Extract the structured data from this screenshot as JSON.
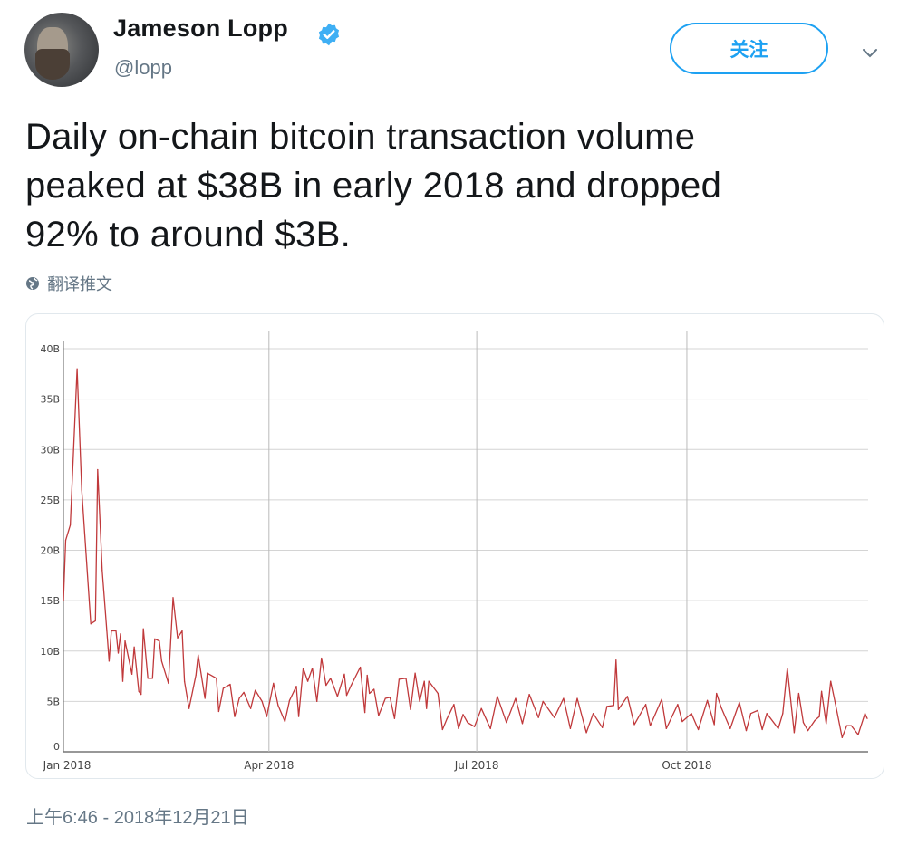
{
  "user": {
    "name": "Jameson Lopp",
    "handle": "@lopp",
    "verified": true,
    "avatar_icon": "avatar-photo"
  },
  "actions": {
    "follow_label": "关注",
    "menu_icon": "chevron-down-icon"
  },
  "tweet": {
    "lines": [
      "Daily on-chain bitcoin transaction volume",
      "peaked at $38B in early 2018 and dropped",
      "92% to around $3B."
    ],
    "translate_label": "翻译推文",
    "timestamp": "上午6:46 - 2018年12月21日"
  },
  "colors": {
    "accent": "#1da1f2",
    "line": "#c0393b",
    "muted": "#657786"
  },
  "chart_data": {
    "type": "line",
    "title": "",
    "xlabel": "",
    "ylabel": "",
    "ylim": [
      0,
      40
    ],
    "yticks": [
      "0",
      "5B",
      "10B",
      "15B",
      "20B",
      "25B",
      "30B",
      "35B",
      "40B"
    ],
    "ytick_values": [
      0,
      5,
      10,
      15,
      20,
      25,
      30,
      35,
      40
    ],
    "xticks": [
      "Jan 2018",
      "Apr 2018",
      "Jul 2018",
      "Oct 2018"
    ],
    "xtick_dates": [
      "2018-01-01",
      "2018-04-01",
      "2018-07-01",
      "2018-10-01"
    ],
    "grid": true,
    "unit": "billion USD",
    "series": [
      {
        "points": [
          [
            "2018-01-01",
            15
          ],
          [
            "2018-01-02",
            21
          ],
          [
            "2018-01-04",
            22.5
          ],
          [
            "2018-01-07",
            38
          ],
          [
            "2018-01-09",
            26
          ],
          [
            "2018-01-13",
            12.7
          ],
          [
            "2018-01-15",
            13
          ],
          [
            "2018-01-16",
            28
          ],
          [
            "2018-01-18",
            18
          ],
          [
            "2018-01-20",
            12
          ],
          [
            "2018-01-21",
            9
          ],
          [
            "2018-01-22",
            12
          ],
          [
            "2018-01-24",
            12
          ],
          [
            "2018-01-25",
            9.8
          ],
          [
            "2018-01-26",
            11.7
          ],
          [
            "2018-01-27",
            7
          ],
          [
            "2018-01-28",
            11
          ],
          [
            "2018-01-31",
            7.7
          ],
          [
            "2018-02-01",
            10.4
          ],
          [
            "2018-02-03",
            6
          ],
          [
            "2018-02-04",
            5.7
          ],
          [
            "2018-02-05",
            12.2
          ],
          [
            "2018-02-07",
            7.3
          ],
          [
            "2018-02-09",
            7.3
          ],
          [
            "2018-02-10",
            11.2
          ],
          [
            "2018-02-12",
            11
          ],
          [
            "2018-02-13",
            9
          ],
          [
            "2018-02-16",
            6.8
          ],
          [
            "2018-02-18",
            15.3
          ],
          [
            "2018-02-20",
            11.3
          ],
          [
            "2018-02-22",
            12
          ],
          [
            "2018-02-23",
            7
          ],
          [
            "2018-02-25",
            4.3
          ],
          [
            "2018-02-28",
            7.6
          ],
          [
            "2018-03-01",
            9.6
          ],
          [
            "2018-03-04",
            5.3
          ],
          [
            "2018-03-05",
            7.8
          ],
          [
            "2018-03-09",
            7.3
          ],
          [
            "2018-03-10",
            4
          ],
          [
            "2018-03-12",
            6.3
          ],
          [
            "2018-03-15",
            6.7
          ],
          [
            "2018-03-17",
            3.5
          ],
          [
            "2018-03-19",
            5.3
          ],
          [
            "2018-03-21",
            5.9
          ],
          [
            "2018-03-24",
            4.3
          ],
          [
            "2018-03-26",
            6.1
          ],
          [
            "2018-03-29",
            5
          ],
          [
            "2018-03-31",
            3.5
          ],
          [
            "2018-04-03",
            6.8
          ],
          [
            "2018-04-05",
            4.6
          ],
          [
            "2018-04-08",
            3
          ],
          [
            "2018-04-10",
            5.1
          ],
          [
            "2018-04-13",
            6.5
          ],
          [
            "2018-04-14",
            3.5
          ],
          [
            "2018-04-16",
            8.3
          ],
          [
            "2018-04-18",
            7
          ],
          [
            "2018-04-20",
            8.3
          ],
          [
            "2018-04-22",
            5
          ],
          [
            "2018-04-24",
            9.3
          ],
          [
            "2018-04-26",
            6.6
          ],
          [
            "2018-04-28",
            7.3
          ],
          [
            "2018-05-01",
            5.5
          ],
          [
            "2018-05-04",
            7.7
          ],
          [
            "2018-05-05",
            5.6
          ],
          [
            "2018-05-07",
            6.6
          ],
          [
            "2018-05-11",
            8.4
          ],
          [
            "2018-05-13",
            3.9
          ],
          [
            "2018-05-14",
            7.6
          ],
          [
            "2018-05-15",
            5.8
          ],
          [
            "2018-05-17",
            6.2
          ],
          [
            "2018-05-19",
            3.6
          ],
          [
            "2018-05-22",
            5.3
          ],
          [
            "2018-05-24",
            5.4
          ],
          [
            "2018-05-26",
            3.3
          ],
          [
            "2018-05-28",
            7.2
          ],
          [
            "2018-05-31",
            7.3
          ],
          [
            "2018-06-02",
            4.2
          ],
          [
            "2018-06-04",
            7.8
          ],
          [
            "2018-06-06",
            5
          ],
          [
            "2018-06-08",
            7
          ],
          [
            "2018-06-09",
            4.3
          ],
          [
            "2018-06-10",
            7
          ],
          [
            "2018-06-14",
            5.8
          ],
          [
            "2018-06-16",
            2.2
          ],
          [
            "2018-06-18",
            3.3
          ],
          [
            "2018-06-21",
            4.7
          ],
          [
            "2018-06-23",
            2.3
          ],
          [
            "2018-06-25",
            3.7
          ],
          [
            "2018-06-27",
            2.9
          ],
          [
            "2018-06-30",
            2.5
          ],
          [
            "2018-07-03",
            4.3
          ],
          [
            "2018-07-07",
            2.3
          ],
          [
            "2018-07-10",
            5.5
          ],
          [
            "2018-07-14",
            2.9
          ],
          [
            "2018-07-18",
            5.3
          ],
          [
            "2018-07-21",
            2.8
          ],
          [
            "2018-07-24",
            5.7
          ],
          [
            "2018-07-28",
            3.4
          ],
          [
            "2018-07-30",
            5
          ],
          [
            "2018-08-04",
            3.4
          ],
          [
            "2018-08-08",
            5.3
          ],
          [
            "2018-08-11",
            2.3
          ],
          [
            "2018-08-14",
            5.3
          ],
          [
            "2018-08-18",
            1.9
          ],
          [
            "2018-08-21",
            3.8
          ],
          [
            "2018-08-25",
            2.4
          ],
          [
            "2018-08-27",
            4.5
          ],
          [
            "2018-08-30",
            4.6
          ],
          [
            "2018-08-31",
            9.1
          ],
          [
            "2018-09-01",
            4.2
          ],
          [
            "2018-09-05",
            5.5
          ],
          [
            "2018-09-08",
            2.7
          ],
          [
            "2018-09-13",
            4.7
          ],
          [
            "2018-09-15",
            2.6
          ],
          [
            "2018-09-20",
            5.2
          ],
          [
            "2018-09-22",
            2.3
          ],
          [
            "2018-09-27",
            4.7
          ],
          [
            "2018-09-29",
            3
          ],
          [
            "2018-10-03",
            3.8
          ],
          [
            "2018-10-06",
            2.2
          ],
          [
            "2018-10-10",
            5.1
          ],
          [
            "2018-10-13",
            2.7
          ],
          [
            "2018-10-14",
            5.8
          ],
          [
            "2018-10-16",
            4.4
          ],
          [
            "2018-10-20",
            2.3
          ],
          [
            "2018-10-24",
            4.9
          ],
          [
            "2018-10-27",
            2.1
          ],
          [
            "2018-10-29",
            3.8
          ],
          [
            "2018-11-01",
            4.1
          ],
          [
            "2018-11-03",
            2.2
          ],
          [
            "2018-11-05",
            3.8
          ],
          [
            "2018-11-10",
            2.3
          ],
          [
            "2018-11-12",
            3.8
          ],
          [
            "2018-11-14",
            8.3
          ],
          [
            "2018-11-17",
            1.9
          ],
          [
            "2018-11-19",
            5.8
          ],
          [
            "2018-11-21",
            2.9
          ],
          [
            "2018-11-23",
            2.1
          ],
          [
            "2018-11-26",
            3.1
          ],
          [
            "2018-11-28",
            3.5
          ],
          [
            "2018-11-29",
            6
          ],
          [
            "2018-12-01",
            2.8
          ],
          [
            "2018-12-03",
            7
          ],
          [
            "2018-12-05",
            4.8
          ],
          [
            "2018-12-08",
            1.4
          ],
          [
            "2018-12-10",
            2.6
          ],
          [
            "2018-12-12",
            2.6
          ],
          [
            "2018-12-15",
            1.7
          ],
          [
            "2018-12-18",
            3.8
          ],
          [
            "2018-12-19",
            3.3
          ]
        ]
      }
    ]
  }
}
